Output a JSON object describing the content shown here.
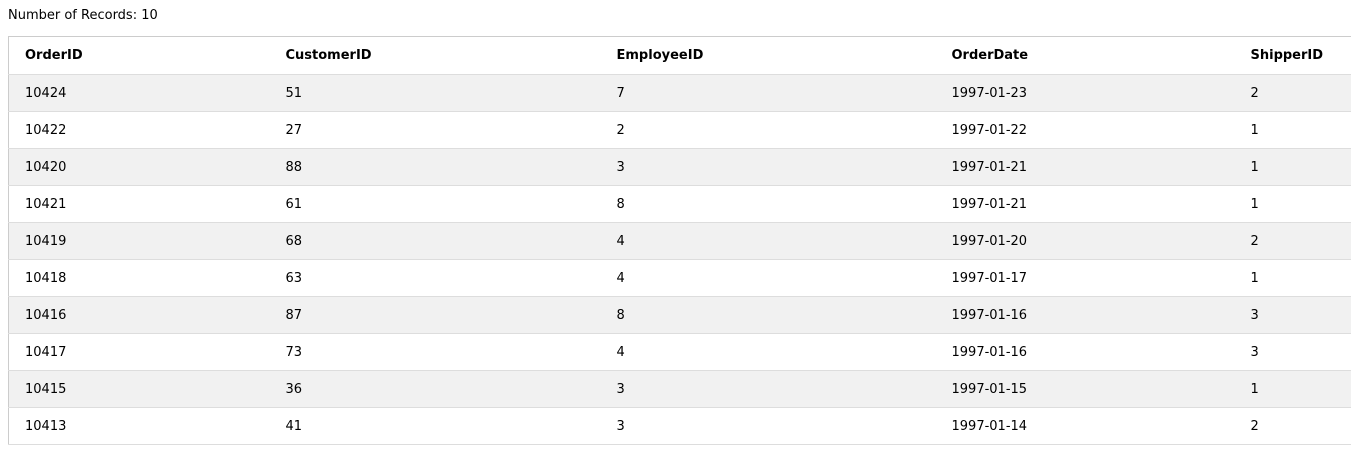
{
  "summary": {
    "record_count_label": "Number of Records: 10"
  },
  "table": {
    "columns": [
      "OrderID",
      "CustomerID",
      "EmployeeID",
      "OrderDate",
      "ShipperID"
    ],
    "rows": [
      [
        "10424",
        "51",
        "7",
        "1997-01-23",
        "2"
      ],
      [
        "10422",
        "27",
        "2",
        "1997-01-22",
        "1"
      ],
      [
        "10420",
        "88",
        "3",
        "1997-01-21",
        "1"
      ],
      [
        "10421",
        "61",
        "8",
        "1997-01-21",
        "1"
      ],
      [
        "10419",
        "68",
        "4",
        "1997-01-20",
        "2"
      ],
      [
        "10418",
        "63",
        "4",
        "1997-01-17",
        "1"
      ],
      [
        "10416",
        "87",
        "8",
        "1997-01-16",
        "3"
      ],
      [
        "10417",
        "73",
        "4",
        "1997-01-16",
        "3"
      ],
      [
        "10415",
        "36",
        "3",
        "1997-01-15",
        "1"
      ],
      [
        "10413",
        "41",
        "3",
        "1997-01-14",
        "2"
      ]
    ]
  },
  "colors": {
    "stripe": "#f1f1f1",
    "border": "#cccccc",
    "row_divider": "#dddddd"
  }
}
